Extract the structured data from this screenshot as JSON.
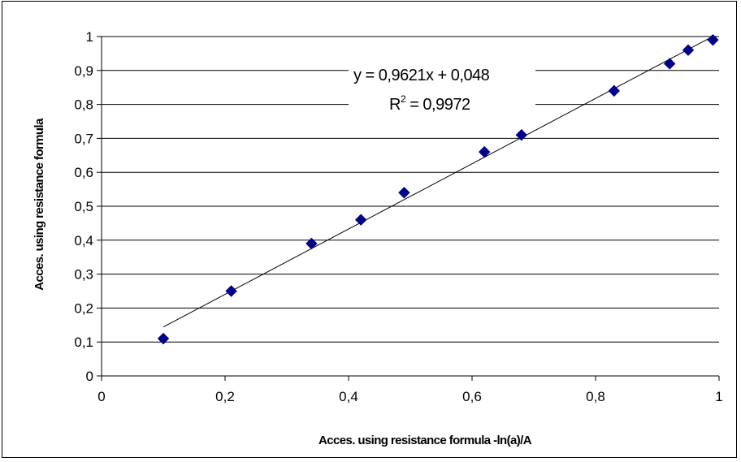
{
  "chart_data": {
    "type": "scatter",
    "x": [
      0.1,
      0.21,
      0.34,
      0.42,
      0.49,
      0.62,
      0.68,
      0.83,
      0.92,
      0.95,
      0.99
    ],
    "y": [
      0.11,
      0.25,
      0.39,
      0.46,
      0.54,
      0.66,
      0.71,
      0.84,
      0.92,
      0.96,
      0.99
    ],
    "xlabel": "Acces. using resistance formula -ln(a)/A",
    "ylabel": "Acces. using resistance formula",
    "xlim": [
      0,
      1
    ],
    "ylim": [
      0,
      1
    ],
    "xticks": [
      "0",
      "0,2",
      "0,4",
      "0,6",
      "0,8",
      "1"
    ],
    "yticks": [
      "0",
      "0,1",
      "0,2",
      "0,3",
      "0,4",
      "0,5",
      "0,6",
      "0,7",
      "0,8",
      "0,9",
      "1"
    ],
    "grid": "horizontal",
    "marker": "diamond",
    "marker_color": "#00008B",
    "trendline": {
      "type": "linear",
      "slope": 0.9621,
      "intercept": 0.048,
      "x_range": [
        0.1,
        0.99
      ],
      "equation": "y = 0,9621x + 0,048",
      "r_squared_prefix": "R",
      "r_squared_power": "2",
      "r_squared_value": " = 0,9972"
    }
  }
}
